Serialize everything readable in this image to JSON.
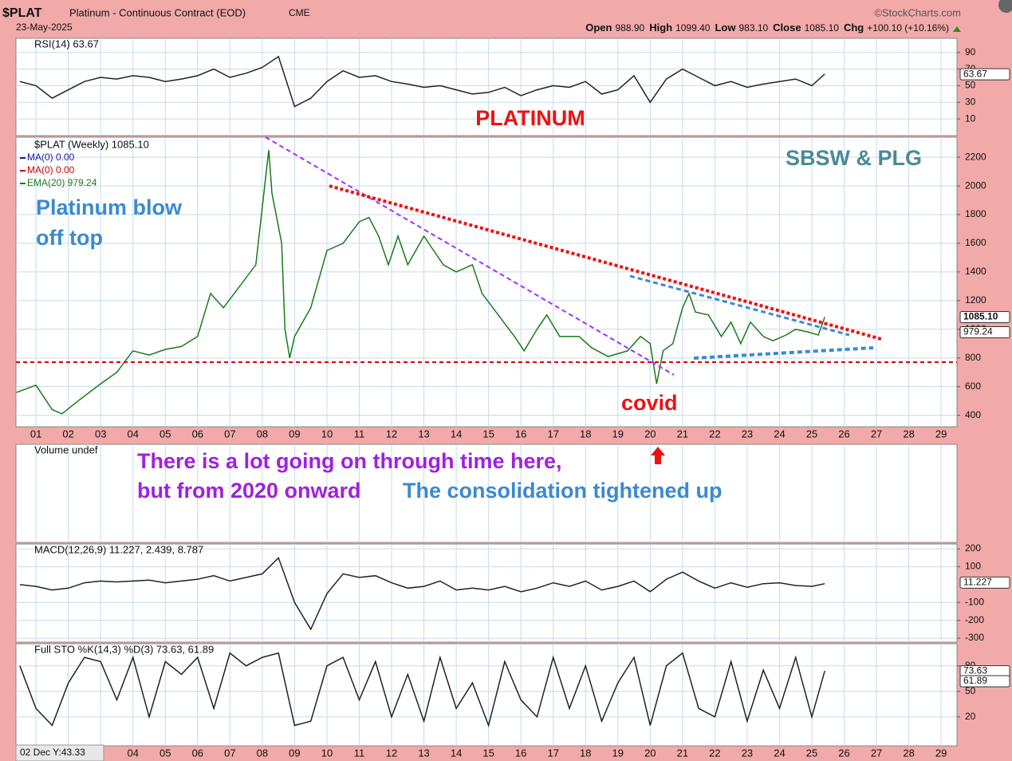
{
  "header": {
    "symbol": "$PLAT",
    "name": "Platinum - Continuous Contract (EOD)",
    "exchange": "CME",
    "date": "23-May-2025",
    "source": "©StockCharts.com",
    "quote": [
      {
        "label": "Open",
        "value": "988.90"
      },
      {
        "label": "High",
        "value": "1099.40"
      },
      {
        "label": "Low",
        "value": "983.10"
      },
      {
        "label": "Close",
        "value": "1085.10"
      },
      {
        "label": "Chg",
        "value": "+100.10 (+10.16%)"
      }
    ],
    "cursor": "02 Dec Y:43.33"
  },
  "chart_data": [
    {
      "type": "line",
      "legend_label": "RSI(14) 63.67",
      "color": "#222222",
      "grid": true,
      "x": [
        0.5,
        1,
        1.5,
        2,
        2.5,
        3,
        3.5,
        4,
        4.5,
        5,
        5.5,
        6,
        6.5,
        7,
        7.5,
        8,
        8.5,
        9,
        9.5,
        10,
        10.5,
        11,
        11.5,
        12,
        12.5,
        13,
        13.5,
        14,
        14.5,
        15,
        15.5,
        16,
        16.5,
        17,
        17.5,
        18,
        18.5,
        19,
        19.5,
        20,
        20.5,
        21,
        21.5,
        22,
        22.5,
        23,
        23.5,
        24,
        24.5,
        25,
        25.4
      ],
      "values": [
        55,
        50,
        35,
        45,
        55,
        60,
        58,
        62,
        60,
        55,
        58,
        62,
        70,
        60,
        65,
        72,
        85,
        25,
        35,
        55,
        68,
        60,
        62,
        55,
        52,
        48,
        50,
        45,
        40,
        42,
        48,
        38,
        45,
        50,
        48,
        55,
        40,
        45,
        62,
        30,
        58,
        70,
        60,
        50,
        55,
        48,
        52,
        55,
        58,
        50,
        64
      ],
      "xlim": [
        0.38,
        29.49
      ],
      "ylim": [
        -10,
        107
      ],
      "yticks": [
        10,
        30,
        50,
        70,
        90
      ],
      "last_labels": [
        {
          "value": 63.67,
          "label": "63.67"
        }
      ],
      "annotations": [
        "PLATINUM"
      ]
    },
    {
      "type": "line",
      "color": "#1a7a1a",
      "grid": true,
      "series": [
        {
          "name": "$PLAT (Weekly) 1085.10",
          "color": "#1a7a1a",
          "x": [
            0.4,
            1,
            1.5,
            1.8,
            2.3,
            3,
            3.5,
            4,
            4.5,
            5,
            5.5,
            6,
            6.4,
            6.8,
            7.3,
            7.8,
            8.1,
            8.2,
            8.3,
            8.6,
            8.7,
            8.85,
            9,
            9.5,
            10,
            10.5,
            11,
            11.3,
            11.6,
            11.9,
            12.2,
            12.5,
            13,
            13.3,
            13.6,
            14,
            14.5,
            14.8,
            15.3,
            15.8,
            16.1,
            16.5,
            16.8,
            17.2,
            17.8,
            18.2,
            18.7,
            19.3,
            19.7,
            20,
            20.2,
            20.4,
            20.7,
            21,
            21.2,
            21.4,
            21.8,
            22.2,
            22.5,
            22.8,
            23.1,
            23.5,
            23.8,
            24.2,
            24.5,
            24.9,
            25.2,
            25.4
          ],
          "values": [
            560,
            610,
            440,
            410,
            500,
            620,
            700,
            850,
            820,
            860,
            880,
            950,
            1250,
            1150,
            1300,
            1450,
            2050,
            2250,
            1950,
            1600,
            1000,
            800,
            950,
            1150,
            1550,
            1600,
            1750,
            1780,
            1650,
            1450,
            1650,
            1450,
            1650,
            1550,
            1450,
            1400,
            1450,
            1250,
            1100,
            950,
            850,
            1000,
            1100,
            950,
            950,
            870,
            810,
            850,
            950,
            900,
            620,
            850,
            900,
            1150,
            1250,
            1120,
            1100,
            950,
            1050,
            900,
            1050,
            950,
            920,
            960,
            1000,
            980,
            960,
            1085
          ]
        }
      ],
      "legend_entries": [
        {
          "name": "MA(0) 0.00",
          "color": "#1a1aa0"
        },
        {
          "name": "MA(0) 0.00",
          "color": "#cc0000"
        },
        {
          "name": "EMA(20) 979.24",
          "color": "#1a7a1a"
        }
      ],
      "xlim": [
        0.38,
        29.49
      ],
      "ylim": [
        320,
        2340
      ],
      "yticks": [
        400,
        600,
        800,
        1000,
        1200,
        1400,
        1600,
        1800,
        2000,
        2200
      ],
      "xticks": [
        {
          "value": 1,
          "label": "01"
        },
        {
          "value": 2,
          "label": "02"
        },
        {
          "value": 3,
          "label": "03"
        },
        {
          "value": 4,
          "label": "04"
        },
        {
          "value": 5,
          "label": "05"
        },
        {
          "value": 6,
          "label": "06"
        },
        {
          "value": 7,
          "label": "07"
        },
        {
          "value": 8,
          "label": "08"
        },
        {
          "value": 9,
          "label": "09"
        },
        {
          "value": 10,
          "label": "10"
        },
        {
          "value": 11,
          "label": "11"
        },
        {
          "value": 12,
          "label": "12"
        },
        {
          "value": 13,
          "label": "13"
        },
        {
          "value": 14,
          "label": "14"
        },
        {
          "value": 15,
          "label": "15"
        },
        {
          "value": 16,
          "label": "16"
        },
        {
          "value": 17,
          "label": "17"
        },
        {
          "value": 18,
          "label": "18"
        },
        {
          "value": 19,
          "label": "19"
        },
        {
          "value": 20,
          "label": "20"
        },
        {
          "value": 21,
          "label": "21"
        },
        {
          "value": 22,
          "label": "22"
        },
        {
          "value": 23,
          "label": "23"
        },
        {
          "value": 24,
          "label": "24"
        },
        {
          "value": 25,
          "label": "25"
        },
        {
          "value": 26,
          "label": "26"
        },
        {
          "value": 27,
          "label": "27"
        },
        {
          "value": 28,
          "label": "28"
        },
        {
          "value": 29,
          "label": "29"
        }
      ],
      "last_labels": [
        {
          "value": 1085.1,
          "label": "1085.10"
        },
        {
          "value": 979.24,
          "label": "979.24"
        }
      ],
      "annotations": [
        "SBSW & PLG",
        "Platinum blow",
        "off top",
        "covid"
      ]
    },
    {
      "type": "bar",
      "legend_label": "Volume undef",
      "grid": true,
      "annotations": [
        "There is a lot going on through time here,",
        "but from 2020 onward",
        "The consolidation tightened up"
      ]
    },
    {
      "type": "line",
      "legend_label": "MACD(12,26,9) 11.227, 2.439, 8.787",
      "color": "#222222",
      "grid": true,
      "x": [
        0.5,
        1,
        1.5,
        2,
        2.5,
        3,
        3.5,
        4,
        4.5,
        5,
        5.5,
        6,
        6.5,
        7,
        7.5,
        8,
        8.5,
        9,
        9.5,
        10,
        10.5,
        11,
        11.5,
        12,
        12.5,
        13,
        13.5,
        14,
        14.5,
        15,
        15.5,
        16,
        16.5,
        17,
        17.5,
        18,
        18.5,
        19,
        19.5,
        20,
        20.5,
        21,
        21.5,
        22,
        22.5,
        23,
        23.5,
        24,
        24.5,
        25,
        25.4
      ],
      "values": [
        0,
        -10,
        -30,
        -20,
        10,
        20,
        15,
        20,
        25,
        10,
        20,
        30,
        50,
        20,
        40,
        60,
        150,
        -100,
        -250,
        -50,
        60,
        40,
        50,
        10,
        -20,
        -10,
        20,
        -30,
        -20,
        -30,
        -10,
        -40,
        -20,
        10,
        -10,
        20,
        -30,
        -10,
        20,
        -40,
        30,
        70,
        20,
        -20,
        10,
        -15,
        5,
        10,
        -5,
        -10,
        5
      ],
      "xlim": [
        0.38,
        29.49
      ],
      "ylim": [
        -322,
        227
      ],
      "yticks": [
        -300,
        -200,
        -100,
        100,
        200
      ],
      "last_labels": [
        {
          "value": 11.227,
          "label": "11.227"
        }
      ]
    },
    {
      "type": "line",
      "legend_label": "Full STO %K(14,3) %D(3) 73.63, 61.89",
      "color": "#222222",
      "grid": true,
      "x": [
        0.5,
        1,
        1.5,
        2,
        2.5,
        3,
        3.5,
        4,
        4.5,
        5,
        5.5,
        6,
        6.5,
        7,
        7.5,
        8,
        8.5,
        9,
        9.5,
        10,
        10.5,
        11,
        11.5,
        12,
        12.5,
        13,
        13.5,
        14,
        14.5,
        15,
        15.5,
        16,
        16.5,
        17,
        17.5,
        18,
        18.5,
        19,
        19.5,
        20,
        20.5,
        21,
        21.5,
        22,
        22.5,
        23,
        23.5,
        24,
        24.5,
        25,
        25.4
      ],
      "values": [
        80,
        30,
        10,
        60,
        90,
        85,
        40,
        90,
        20,
        85,
        70,
        90,
        30,
        95,
        80,
        90,
        95,
        10,
        15,
        80,
        90,
        40,
        85,
        20,
        70,
        15,
        90,
        30,
        60,
        10,
        85,
        40,
        20,
        90,
        30,
        80,
        15,
        60,
        90,
        10,
        80,
        95,
        30,
        20,
        85,
        15,
        75,
        30,
        90,
        20,
        74
      ],
      "xlim": [
        0.38,
        29.49
      ],
      "ylim": [
        -14,
        106
      ],
      "yticks": [
        20,
        50,
        80
      ],
      "xticks": [
        {
          "value": 4,
          "label": "04"
        },
        {
          "value": 5,
          "label": "05"
        },
        {
          "value": 6,
          "label": "06"
        },
        {
          "value": 7,
          "label": "07"
        },
        {
          "value": 8,
          "label": "08"
        },
        {
          "value": 9,
          "label": "09"
        },
        {
          "value": 10,
          "label": "10"
        },
        {
          "value": 11,
          "label": "11"
        },
        {
          "value": 12,
          "label": "12"
        },
        {
          "value": 13,
          "label": "13"
        },
        {
          "value": 14,
          "label": "14"
        },
        {
          "value": 15,
          "label": "15"
        },
        {
          "value": 16,
          "label": "16"
        },
        {
          "value": 17,
          "label": "17"
        },
        {
          "value": 18,
          "label": "18"
        },
        {
          "value": 19,
          "label": "19"
        },
        {
          "value": 20,
          "label": "20"
        },
        {
          "value": 21,
          "label": "21"
        },
        {
          "value": 22,
          "label": "22"
        },
        {
          "value": 23,
          "label": "23"
        },
        {
          "value": 24,
          "label": "24"
        },
        {
          "value": 25,
          "label": "25"
        },
        {
          "value": 26,
          "label": "26"
        },
        {
          "value": 27,
          "label": "27"
        },
        {
          "value": 28,
          "label": "28"
        },
        {
          "value": 29,
          "label": "29"
        }
      ],
      "last_labels": [
        {
          "value": 73.63,
          "label": "73.63"
        },
        {
          "value": 61.89,
          "label": "61.89"
        }
      ]
    }
  ]
}
